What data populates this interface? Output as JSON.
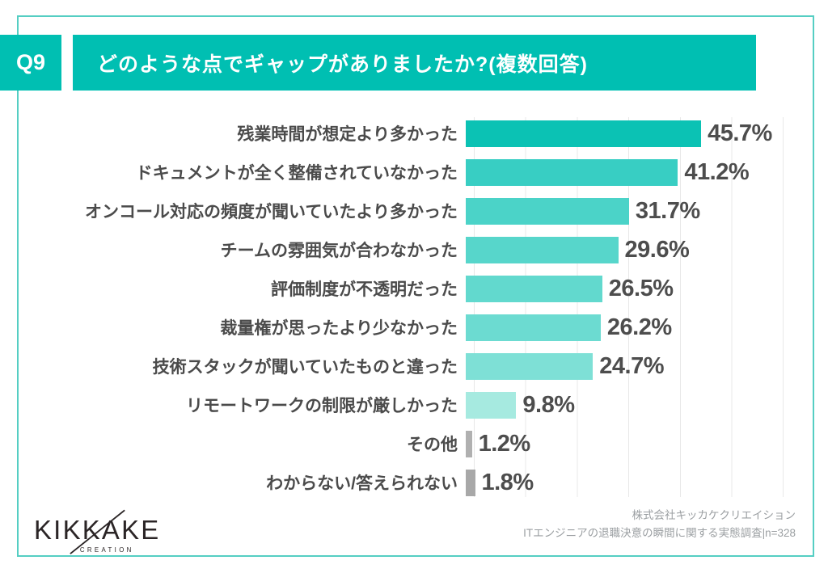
{
  "header": {
    "q_label": "Q9",
    "title": "どのような点でギャップがありましたか?(複数回答)"
  },
  "chart_data": {
    "type": "bar",
    "orientation": "horizontal",
    "unit": "%",
    "xlim": [
      0,
      65
    ],
    "gridline_step": 10,
    "grid": "on",
    "categories": [
      "残業時間が想定より多かった",
      "ドキュメントが全く整備されていなかった",
      "オンコール対応の頻度が聞いていたより多かった",
      "チームの雰囲気が合わなかった",
      "評価制度が不透明だった",
      "裁量権が思ったより少なかった",
      "技術スタックが聞いていたものと違った",
      "リモートワークの制限が厳しかった",
      "その他",
      "わからない/答えられない"
    ],
    "values": [
      45.7,
      41.2,
      31.7,
      29.6,
      26.5,
      26.2,
      24.7,
      9.8,
      1.2,
      1.8
    ],
    "value_labels": [
      "45.7%",
      "41.2%",
      "31.7%",
      "29.6%",
      "26.5%",
      "26.2%",
      "24.7%",
      "9.8%",
      "1.2%",
      "1.8%"
    ],
    "bar_colors": [
      "#0BC2B4",
      "#38CEC3",
      "#4BD3C8",
      "#57D6CB",
      "#62D9CE",
      "#6CDBD1",
      "#7EE0D6",
      "#A6EAE0",
      "#B0B0B0",
      "#A8A8A8"
    ]
  },
  "footer": {
    "logo_text": "KIKKAKE",
    "logo_subtext": "CREATION",
    "source_line1": "株式会社キッカケクリエイション",
    "source_line2": "ITエンジニアの退職決意の瞬間に関する実態調査|n=328"
  },
  "colors": {
    "accent": "#00BFB2",
    "frame_border": "#55CEC3",
    "label_text": "#4B4B4B",
    "value_text": "#4D4D4D",
    "attribution_text": "#9B9FA2",
    "gridline": "#E8E8E8",
    "logo_ink": "#2B2526"
  }
}
